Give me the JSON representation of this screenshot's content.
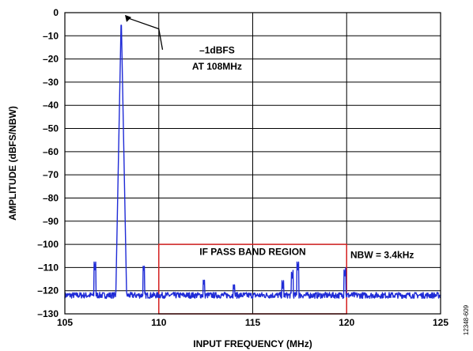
{
  "chart_data": {
    "type": "line",
    "xlabel": "INPUT FREQUENCY (MHz)",
    "ylabel": "AMPLITUDE (dBFS/NBW)",
    "xlim": [
      105,
      125
    ],
    "ylim": [
      -130,
      0
    ],
    "x_ticks": [
      "105",
      "110",
      "115",
      "120",
      "125"
    ],
    "y_ticks": [
      "0",
      "–10",
      "–20",
      "–30",
      "–40",
      "–50",
      "–60",
      "–70",
      "–80",
      "–90",
      "–100",
      "–110",
      "–120",
      "–130"
    ],
    "grid": true,
    "line_color": "#1f2bd6",
    "noise_floor": -122,
    "main_peak": {
      "x": 108,
      "y": -1
    },
    "spurs": [
      {
        "x": 106.6,
        "y": -111
      },
      {
        "x": 109.2,
        "y": -112
      },
      {
        "x": 112.4,
        "y": -118
      },
      {
        "x": 114.0,
        "y": -120
      },
      {
        "x": 116.6,
        "y": -119
      },
      {
        "x": 117.1,
        "y": -115
      },
      {
        "x": 117.4,
        "y": -111
      },
      {
        "x": 119.9,
        "y": -114
      }
    ],
    "annotations": {
      "peak_line1": "–1dBFS",
      "peak_line2": "AT 108MHz",
      "region_label": "IF PASS BAND REGION",
      "nbw_label": "NBW = 3.4kHz"
    },
    "region": {
      "x_start": 110,
      "x_end": 120,
      "y_top": -100,
      "y_bottom": -130,
      "color": "#d42020"
    }
  },
  "figure_id": "12348-609"
}
